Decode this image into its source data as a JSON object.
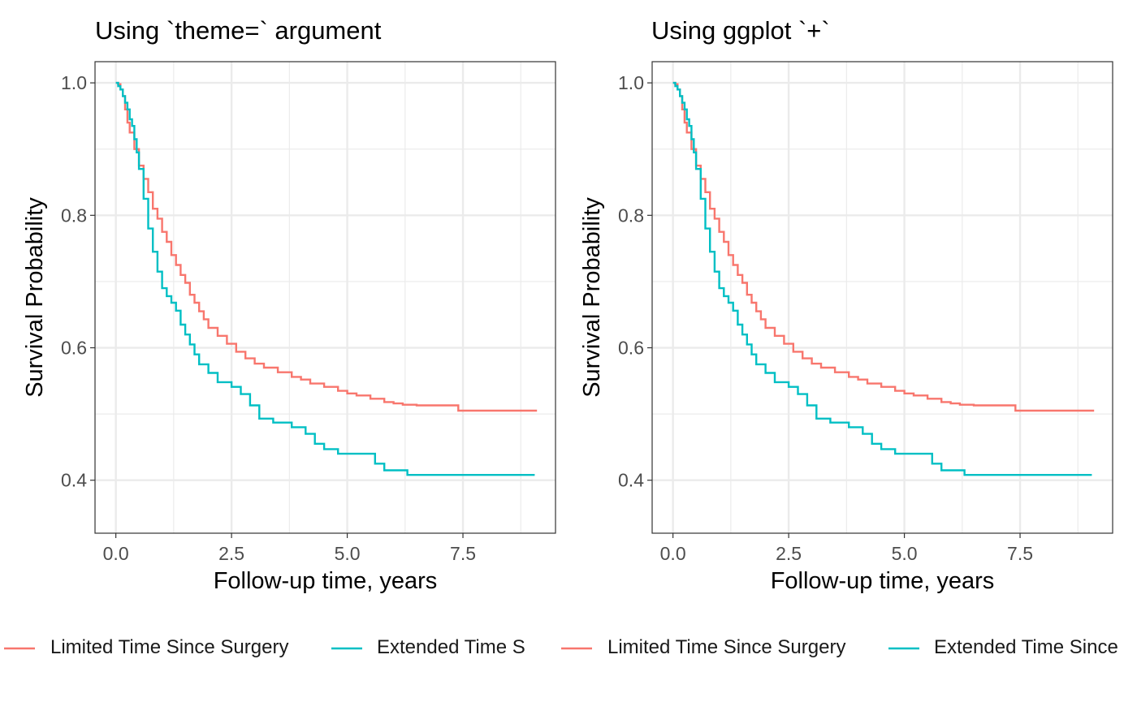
{
  "colors": {
    "limited": "#F8766D",
    "extended": "#00BFC4"
  },
  "chart_data": [
    {
      "type": "line",
      "title": "Using `theme=` argument",
      "xlabel": "Follow-up time, years",
      "ylabel": "Survival Probability",
      "xlim": [
        -0.45,
        9.5
      ],
      "ylim": [
        0.32,
        1.032
      ],
      "xticks": [
        0,
        2.5,
        5,
        7.5
      ],
      "xtick_labels": [
        "0.0",
        "2.5",
        "5.0",
        "7.5"
      ],
      "yticks": [
        0.4,
        0.6,
        0.8,
        1.0
      ],
      "ytick_labels": [
        "0.4",
        "0.6",
        "0.8",
        "1.0"
      ],
      "grid": true,
      "legend_position": "bottom",
      "series": [
        {
          "name": "Limited Time Since Surgery",
          "color_key": "limited",
          "x": [
            0,
            0.05,
            0.1,
            0.15,
            0.2,
            0.25,
            0.3,
            0.4,
            0.5,
            0.6,
            0.7,
            0.8,
            0.9,
            1.0,
            1.1,
            1.2,
            1.3,
            1.4,
            1.5,
            1.6,
            1.7,
            1.8,
            1.9,
            2.0,
            2.2,
            2.4,
            2.6,
            2.8,
            3.0,
            3.2,
            3.5,
            3.8,
            4.0,
            4.2,
            4.5,
            4.8,
            5.0,
            5.2,
            5.5,
            5.8,
            6.0,
            6.2,
            6.5,
            7.0,
            7.3,
            7.4,
            8.0,
            9.1
          ],
          "y": [
            1.0,
            0.998,
            0.99,
            0.98,
            0.96,
            0.94,
            0.925,
            0.9,
            0.875,
            0.855,
            0.835,
            0.81,
            0.795,
            0.775,
            0.76,
            0.74,
            0.725,
            0.71,
            0.698,
            0.68,
            0.668,
            0.655,
            0.643,
            0.63,
            0.618,
            0.606,
            0.594,
            0.584,
            0.576,
            0.57,
            0.563,
            0.556,
            0.552,
            0.546,
            0.541,
            0.535,
            0.531,
            0.528,
            0.523,
            0.518,
            0.516,
            0.514,
            0.513,
            0.513,
            0.513,
            0.505,
            0.505,
            0.505
          ]
        },
        {
          "name": "Extended Time Since Surgery",
          "color_key": "extended",
          "x": [
            0,
            0.05,
            0.1,
            0.15,
            0.2,
            0.25,
            0.3,
            0.35,
            0.4,
            0.45,
            0.5,
            0.6,
            0.7,
            0.8,
            0.9,
            1.0,
            1.1,
            1.2,
            1.3,
            1.4,
            1.5,
            1.6,
            1.7,
            1.8,
            2.0,
            2.2,
            2.5,
            2.7,
            2.9,
            3.1,
            3.4,
            3.8,
            4.1,
            4.3,
            4.5,
            4.8,
            5.0,
            5.5,
            5.6,
            5.8,
            6.0,
            6.2,
            6.3,
            7.0,
            8.0,
            9.05
          ],
          "y": [
            1.0,
            0.995,
            0.99,
            0.98,
            0.97,
            0.96,
            0.945,
            0.935,
            0.915,
            0.895,
            0.87,
            0.825,
            0.78,
            0.745,
            0.715,
            0.69,
            0.678,
            0.668,
            0.656,
            0.635,
            0.62,
            0.605,
            0.59,
            0.575,
            0.562,
            0.548,
            0.541,
            0.53,
            0.513,
            0.493,
            0.487,
            0.48,
            0.47,
            0.455,
            0.447,
            0.44,
            0.44,
            0.44,
            0.425,
            0.415,
            0.415,
            0.415,
            0.408,
            0.408,
            0.408,
            0.408
          ]
        }
      ]
    },
    {
      "type": "line",
      "title": "Using ggplot `+`",
      "xlabel": "Follow-up time, years",
      "ylabel": "Survival Probability",
      "xlim": [
        -0.45,
        9.5
      ],
      "ylim": [
        0.32,
        1.032
      ],
      "xticks": [
        0,
        2.5,
        5,
        7.5
      ],
      "xtick_labels": [
        "0.0",
        "2.5",
        "5.0",
        "7.5"
      ],
      "yticks": [
        0.4,
        0.6,
        0.8,
        1.0
      ],
      "ytick_labels": [
        "0.4",
        "0.6",
        "0.8",
        "1.0"
      ],
      "grid": true,
      "legend_position": "bottom",
      "series": [
        {
          "name": "Limited Time Since Surgery",
          "color_key": "limited",
          "x": [
            0,
            0.05,
            0.1,
            0.15,
            0.2,
            0.25,
            0.3,
            0.4,
            0.5,
            0.6,
            0.7,
            0.8,
            0.9,
            1.0,
            1.1,
            1.2,
            1.3,
            1.4,
            1.5,
            1.6,
            1.7,
            1.8,
            1.9,
            2.0,
            2.2,
            2.4,
            2.6,
            2.8,
            3.0,
            3.2,
            3.5,
            3.8,
            4.0,
            4.2,
            4.5,
            4.8,
            5.0,
            5.2,
            5.5,
            5.8,
            6.0,
            6.2,
            6.5,
            7.0,
            7.3,
            7.4,
            8.0,
            9.1
          ],
          "y": [
            1.0,
            0.998,
            0.99,
            0.98,
            0.96,
            0.94,
            0.925,
            0.9,
            0.875,
            0.855,
            0.835,
            0.81,
            0.795,
            0.775,
            0.76,
            0.74,
            0.725,
            0.71,
            0.698,
            0.68,
            0.668,
            0.655,
            0.643,
            0.63,
            0.618,
            0.606,
            0.594,
            0.584,
            0.576,
            0.57,
            0.563,
            0.556,
            0.552,
            0.546,
            0.541,
            0.535,
            0.531,
            0.528,
            0.523,
            0.518,
            0.516,
            0.514,
            0.513,
            0.513,
            0.513,
            0.505,
            0.505,
            0.505
          ]
        },
        {
          "name": "Extended Time Since Surgery",
          "color_key": "extended",
          "x": [
            0,
            0.05,
            0.1,
            0.15,
            0.2,
            0.25,
            0.3,
            0.35,
            0.4,
            0.45,
            0.5,
            0.6,
            0.7,
            0.8,
            0.9,
            1.0,
            1.1,
            1.2,
            1.3,
            1.4,
            1.5,
            1.6,
            1.7,
            1.8,
            2.0,
            2.2,
            2.5,
            2.7,
            2.9,
            3.1,
            3.4,
            3.8,
            4.1,
            4.3,
            4.5,
            4.8,
            5.0,
            5.5,
            5.6,
            5.8,
            6.0,
            6.2,
            6.3,
            7.0,
            8.0,
            9.05
          ],
          "y": [
            1.0,
            0.995,
            0.99,
            0.98,
            0.97,
            0.96,
            0.945,
            0.935,
            0.915,
            0.895,
            0.87,
            0.825,
            0.78,
            0.745,
            0.715,
            0.69,
            0.678,
            0.668,
            0.656,
            0.635,
            0.62,
            0.605,
            0.59,
            0.575,
            0.562,
            0.548,
            0.541,
            0.53,
            0.513,
            0.493,
            0.487,
            0.48,
            0.47,
            0.455,
            0.447,
            0.44,
            0.44,
            0.44,
            0.425,
            0.415,
            0.415,
            0.415,
            0.408,
            0.408,
            0.408,
            0.408
          ]
        }
      ]
    }
  ],
  "legends": [
    {
      "entries": [
        "Limited Time Since Surgery",
        "Extended Time S"
      ]
    },
    {
      "entries": [
        "Limited Time Since Surgery",
        "Extended Time Since"
      ]
    }
  ]
}
